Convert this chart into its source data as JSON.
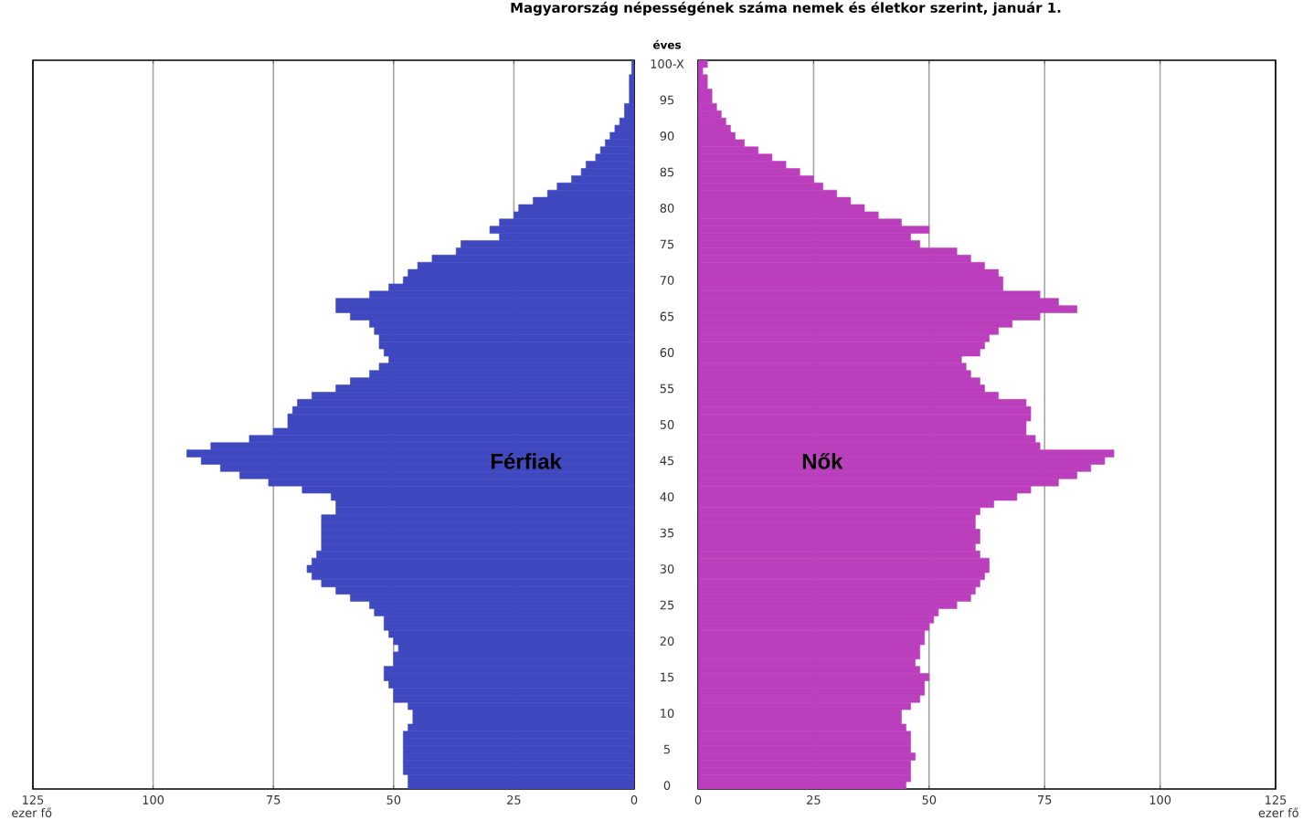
{
  "chart_data": [
    {
      "type": "bar",
      "orientation": "horizontal",
      "title": "Magyarország népességének száma nemek és életkor szerint, január 1.",
      "xlabel": "ezer fő",
      "ylabel": "éves",
      "annotations": [
        "Férfiak"
      ],
      "color": "#3f48bf",
      "grid": "x",
      "xlim": [
        125,
        0
      ],
      "xticks": [
        0,
        25,
        50,
        75,
        100,
        125
      ],
      "categories": [
        "100-X",
        null,
        null,
        null,
        null,
        "95",
        null,
        null,
        null,
        null,
        "90",
        null,
        null,
        null,
        null,
        "85",
        null,
        null,
        null,
        null,
        "80",
        null,
        null,
        null,
        null,
        "75",
        null,
        null,
        null,
        null,
        "70",
        null,
        null,
        null,
        null,
        "65",
        null,
        null,
        null,
        null,
        "60",
        null,
        null,
        null,
        null,
        "55",
        null,
        null,
        null,
        null,
        "50",
        null,
        null,
        null,
        null,
        "45",
        null,
        null,
        null,
        null,
        "40",
        null,
        null,
        null,
        null,
        "35",
        null,
        null,
        null,
        null,
        "30",
        null,
        null,
        null,
        null,
        "25",
        null,
        null,
        null,
        null,
        "20",
        null,
        null,
        null,
        null,
        "15",
        null,
        null,
        null,
        null,
        "10",
        null,
        null,
        null,
        null,
        "5",
        null,
        null,
        null,
        null,
        "0"
      ],
      "values": [
        0.5,
        0.5,
        1,
        1,
        1,
        1,
        2,
        2,
        3,
        4,
        5,
        6,
        7,
        8,
        10,
        11,
        13,
        16,
        18,
        21,
        24,
        25,
        28,
        30,
        28,
        36,
        37,
        42,
        45,
        47,
        48,
        51,
        55,
        62,
        62,
        59,
        55,
        54,
        53,
        53,
        52,
        51,
        53,
        55,
        59,
        62,
        67,
        70,
        71,
        72,
        72,
        75,
        80,
        88,
        93,
        90,
        86,
        82,
        76,
        69,
        63,
        62,
        62,
        65,
        65,
        65,
        65,
        65,
        66,
        67,
        68,
        67,
        65,
        62,
        59,
        55,
        54,
        52,
        52,
        51,
        50,
        49,
        50,
        50,
        52,
        52,
        51,
        50,
        50,
        47,
        46,
        46,
        47,
        48,
        48,
        48,
        48,
        48,
        48,
        47,
        47
      ]
    },
    {
      "type": "bar",
      "orientation": "horizontal",
      "xlabel": "ezer fő",
      "annotations": [
        "Nők"
      ],
      "color": "#bb3fbd",
      "grid": "x",
      "xlim": [
        0,
        125
      ],
      "xticks": [
        0,
        25,
        50,
        75,
        100,
        125
      ],
      "categories": [
        null,
        null,
        null,
        null,
        null,
        null,
        null,
        null,
        null,
        null,
        null,
        null,
        null,
        null,
        null,
        null,
        null,
        null,
        null,
        null,
        null,
        null,
        null,
        null,
        null,
        null,
        null,
        null,
        null,
        null,
        null,
        null,
        null,
        null,
        null,
        null,
        null,
        null,
        null,
        null,
        null,
        null,
        null,
        null,
        null,
        null,
        null,
        null,
        null,
        null,
        null,
        null,
        null,
        null,
        null,
        null,
        null,
        null,
        null,
        null,
        null,
        null,
        null,
        null,
        null,
        null,
        null,
        null,
        null,
        null,
        null,
        null,
        null,
        null,
        null,
        null,
        null,
        null,
        null,
        null,
        null,
        null,
        null,
        null,
        null,
        null,
        null,
        null,
        null,
        null,
        null,
        null,
        null,
        null,
        null,
        null,
        null,
        null,
        null,
        null,
        null
      ],
      "values": [
        2,
        1,
        2,
        2,
        3,
        3,
        4,
        5,
        6,
        7,
        8,
        10,
        13,
        16,
        19,
        22,
        25,
        27,
        30,
        33,
        36,
        39,
        44,
        50,
        46,
        48,
        56,
        59,
        62,
        65,
        66,
        66,
        74,
        78,
        82,
        74,
        68,
        65,
        63,
        62,
        61,
        57,
        58,
        59,
        61,
        62,
        65,
        71,
        72,
        72,
        71,
        71,
        73,
        74,
        90,
        88,
        85,
        82,
        78,
        72,
        69,
        64,
        61,
        60,
        60,
        61,
        61,
        60,
        61,
        63,
        63,
        62,
        61,
        60,
        59,
        56,
        52,
        51,
        50,
        49,
        49,
        48,
        48,
        47,
        48,
        50,
        49,
        49,
        48,
        46,
        44,
        44,
        45,
        46,
        46,
        46,
        47,
        46,
        46,
        46,
        45
      ]
    }
  ]
}
